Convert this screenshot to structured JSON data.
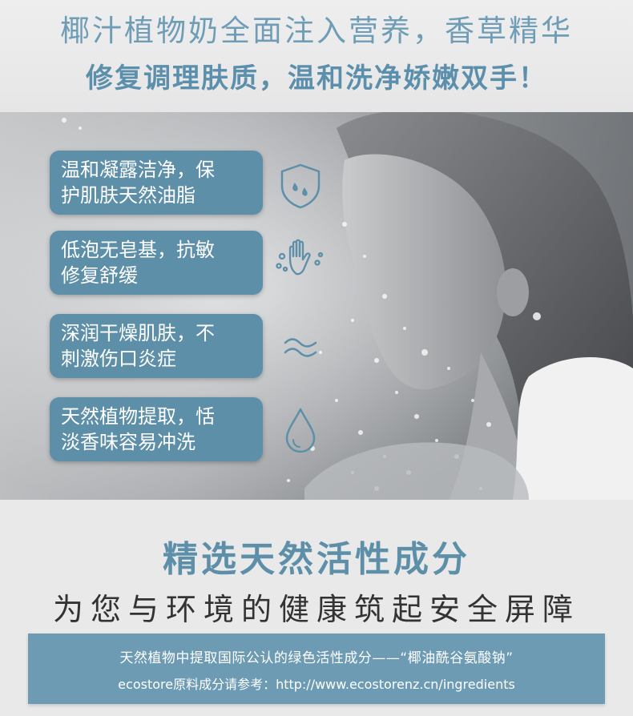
{
  "header": {
    "line1": "椰汁植物奶全面注入营养，香草精华",
    "line2": "修复调理肤质，温和洗净娇嫩双手！"
  },
  "benefits": [
    {
      "line1": "温和凝露洁净，保",
      "line2": "护肌肤天然油脂",
      "icon": "shield-drops-icon"
    },
    {
      "line1": "低泡无皂基，抗敏",
      "line2": "修复舒缓",
      "icon": "hand-bubbles-icon"
    },
    {
      "line1": "深润干燥肌肤，不",
      "line2": "刺激伤口炎症",
      "icon": "waves-icon"
    },
    {
      "line1": "天然植物提取，恬",
      "line2": "淡香味容易冲洗",
      "icon": "water-drop-icon"
    }
  ],
  "section": {
    "title": "精选天然活性成分",
    "subtitle": "为您与环境的健康筑起安全屏障"
  },
  "info": {
    "line1": "天然植物中提取国际公认的绿色活性成分——“椰油酰谷氨酸钠”",
    "line2": "ecostore原料成分请参考：http://www.ecostorenz.cn/ingredients"
  },
  "colors": {
    "accent": "#5d8fa9",
    "headline": "#6f9db6",
    "info_bar": "#6d9bb3",
    "text_dark": "#333333"
  }
}
